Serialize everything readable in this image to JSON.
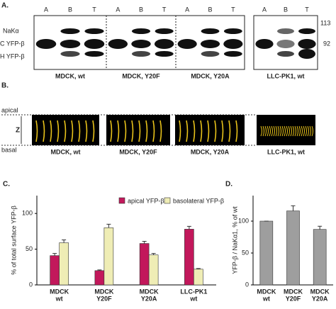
{
  "panel_a": {
    "label": "A.",
    "lanes": [
      "A",
      "B",
      "T"
    ],
    "band_labels": [
      "NaKα",
      "C YFP-β",
      "H YFP-β"
    ],
    "mw_markers": [
      113,
      92
    ],
    "captions": [
      "MDCK, wt",
      "MDCK, Y20F",
      "MDCK, Y20A",
      "LLC-PK1, wt"
    ]
  },
  "panel_b": {
    "label": "B.",
    "apical": "apical",
    "z": "Z",
    "basal": "basal",
    "captions": [
      "MDCK, wt",
      "MDCK, Y20F",
      "MDCK, Y20A",
      "LLC-PK1, wt"
    ]
  },
  "chart_data": [
    {
      "type": "bar",
      "label": "C.",
      "y_label": "% of total surface YFP-β",
      "categories": [
        [
          "MDCK",
          "wt"
        ],
        [
          "MDCK",
          "Y20F"
        ],
        [
          "MDCK",
          "Y20A"
        ],
        [
          "LLC-PK1",
          "wt"
        ]
      ],
      "series": [
        {
          "name": "apical YFP-β",
          "color": "#c2185b",
          "values": [
            41,
            20,
            58,
            78
          ],
          "errors": [
            3,
            1,
            3,
            4
          ]
        },
        {
          "name": "basolateral YFP-β",
          "color": "#efedb5",
          "values": [
            59,
            80,
            42,
            22
          ],
          "errors": [
            4,
            5,
            2,
            1
          ]
        }
      ],
      "ylim": [
        0,
        125
      ],
      "yticks": [
        0,
        50,
        100
      ],
      "legend": "upper right"
    },
    {
      "type": "bar",
      "label": "D.",
      "y_label": "YFP-β / NaKα1, % of wt",
      "categories": [
        [
          "MDCK",
          "wt"
        ],
        [
          "MDCK",
          "Y20F"
        ],
        [
          "MDCK",
          "Y20A"
        ]
      ],
      "series": [
        {
          "color": "#9e9e9e",
          "values": [
            100,
            116,
            87
          ],
          "errors": [
            0,
            8,
            5
          ]
        }
      ],
      "ylim": [
        0,
        140
      ],
      "yticks": [
        0,
        50,
        100
      ]
    }
  ]
}
